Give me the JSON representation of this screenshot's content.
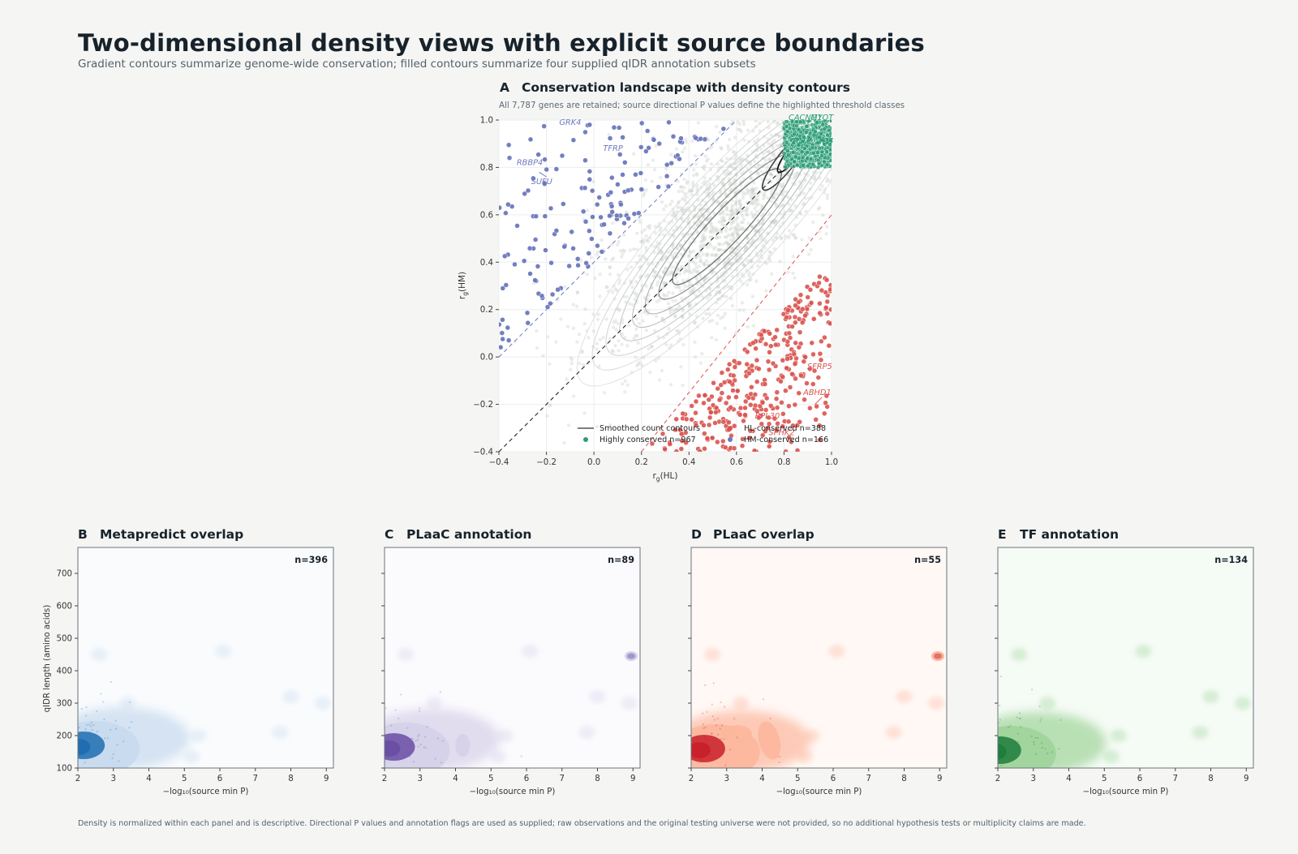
{
  "figure": {
    "title": "Two-dimensional density views with explicit source boundaries",
    "subtitle": "Gradient contours summarize genome-wide conservation; filled contours summarize four supplied qIDR annotation subsets",
    "footnote": "Density is normalized within each panel and is descriptive. Directional P values and annotation flags are used as supplied; raw observations and the original testing universe were not provided, so no additional hypothesis tests or multiplicity claims are made."
  },
  "chart_data": [
    {
      "panel": "A",
      "type": "scatter",
      "title": "Conservation landscape with density contours",
      "subtitle": "All 7,787 genes are retained; source directional P values define the highlighted threshold classes",
      "xlabel": "r_g(HL)",
      "ylabel": "r_g(HM)",
      "xlim": [
        -0.4,
        1.0
      ],
      "ylim": [
        -0.4,
        1.0
      ],
      "xticks": [
        "−0.4",
        "−0.2",
        "0.0",
        "0.2",
        "0.4",
        "0.6",
        "0.8",
        "1.0"
      ],
      "yticks": [
        "−0.4",
        "−0.2",
        "0.0",
        "0.2",
        "0.4",
        "0.6",
        "0.8",
        "1.0"
      ],
      "grid": true,
      "legend_position": "bottom-right",
      "legend": [
        {
          "label": "Smoothed count contours",
          "kind": "line",
          "color": "#333333"
        },
        {
          "label": "HL-conserved  n=388",
          "kind": "dot",
          "color": "#d9534f"
        },
        {
          "label": "Highly conserved  n=967",
          "kind": "dot",
          "color": "#2a9d76"
        },
        {
          "label": "HM-conserved  n=166",
          "kind": "dot",
          "color": "#6c78bd"
        }
      ],
      "series": [
        {
          "name": "Highly conserved",
          "count": 967,
          "color": "#2a9d76",
          "x_range": [
            0.8,
            1.0
          ],
          "y_range": [
            0.8,
            1.0
          ]
        },
        {
          "name": "HL-conserved",
          "count": 388,
          "color": "#d9534f",
          "region": "below y = x − 0.6"
        },
        {
          "name": "HM-conserved",
          "count": 166,
          "color": "#6c78bd",
          "region": "above y = x + 0.4"
        }
      ],
      "annotations": [
        {
          "text": "GRK4",
          "x": -0.1,
          "y": 0.98,
          "color": "#6c78bd"
        },
        {
          "text": "TFRP",
          "x": 0.08,
          "y": 0.87,
          "color": "#6c78bd"
        },
        {
          "text": "RBBP4",
          "x": -0.27,
          "y": 0.81,
          "color": "#6c78bd"
        },
        {
          "text": "SUFU",
          "x": -0.22,
          "y": 0.73,
          "color": "#6c78bd"
        },
        {
          "text": "CACNG1",
          "x": 0.89,
          "y": 1.0,
          "color": "#2a9d76"
        },
        {
          "text": "MYOT",
          "x": 0.96,
          "y": 1.0,
          "color": "#2a9d76"
        },
        {
          "text": "TCTEX1D4",
          "x": 0.92,
          "y": 0.9,
          "color": "#2a9d76"
        },
        {
          "text": "SFRP5",
          "x": 0.95,
          "y": -0.05,
          "color": "#d9534f"
        },
        {
          "text": "ABHD1",
          "x": 0.94,
          "y": -0.16,
          "color": "#d9534f"
        },
        {
          "text": "RPL30",
          "x": 0.73,
          "y": -0.26,
          "color": "#d9534f"
        },
        {
          "text": "SPHK2",
          "x": 0.79,
          "y": -0.33,
          "color": "#d9534f"
        }
      ]
    },
    {
      "panel": "B",
      "type": "heatmap",
      "title": "Metapredict overlap",
      "n_label": "n=396",
      "xlabel": "−log₁₀(source min P)",
      "ylabel": "qIDR length (amino acids)",
      "xlim": [
        2,
        9.2
      ],
      "ylim": [
        100,
        780
      ],
      "xticks": [
        "2",
        "3",
        "4",
        "5",
        "6",
        "7",
        "8",
        "9"
      ],
      "yticks": [
        "100",
        "200",
        "300",
        "400",
        "500",
        "600",
        "700"
      ],
      "colormap": "blues",
      "color_light": "#c6d9ee",
      "color_dark": "#1f6db1",
      "peak": {
        "x": 2.3,
        "y": 180
      }
    },
    {
      "panel": "C",
      "type": "heatmap",
      "title": "PLaaC annotation",
      "n_label": "n=89",
      "xlabel": "−log₁₀(source min P)",
      "xlim": [
        2,
        9.2
      ],
      "ylim": [
        100,
        780
      ],
      "xticks": [
        "2",
        "3",
        "4",
        "5",
        "6",
        "7",
        "8",
        "9"
      ],
      "colormap": "purples",
      "color_light": "#d5d0e8",
      "color_dark": "#6a4ea4",
      "peak": {
        "x": 2.4,
        "y": 175
      }
    },
    {
      "panel": "D",
      "type": "heatmap",
      "title": "PLaaC overlap",
      "n_label": "n=55",
      "xlabel": "−log₁₀(source min P)",
      "xlim": [
        2,
        9.2
      ],
      "ylim": [
        100,
        780
      ],
      "xticks": [
        "2",
        "3",
        "4",
        "5",
        "6",
        "7",
        "8",
        "9"
      ],
      "colormap": "reds",
      "color_light": "#fcb79d",
      "color_dark": "#c8202a",
      "peak": {
        "x": 2.5,
        "y": 170
      }
    },
    {
      "panel": "E",
      "type": "heatmap",
      "title": "TF annotation",
      "n_label": "n=134",
      "xlabel": "−log₁₀(source min P)",
      "xlim": [
        2,
        9.2
      ],
      "ylim": [
        100,
        780
      ],
      "xticks": [
        "2",
        "3",
        "4",
        "5",
        "6",
        "7",
        "8",
        "9"
      ],
      "colormap": "greens",
      "color_light": "#9fd49a",
      "color_dark": "#1f7d3c",
      "peak": {
        "x": 2.2,
        "y": 165
      }
    }
  ]
}
